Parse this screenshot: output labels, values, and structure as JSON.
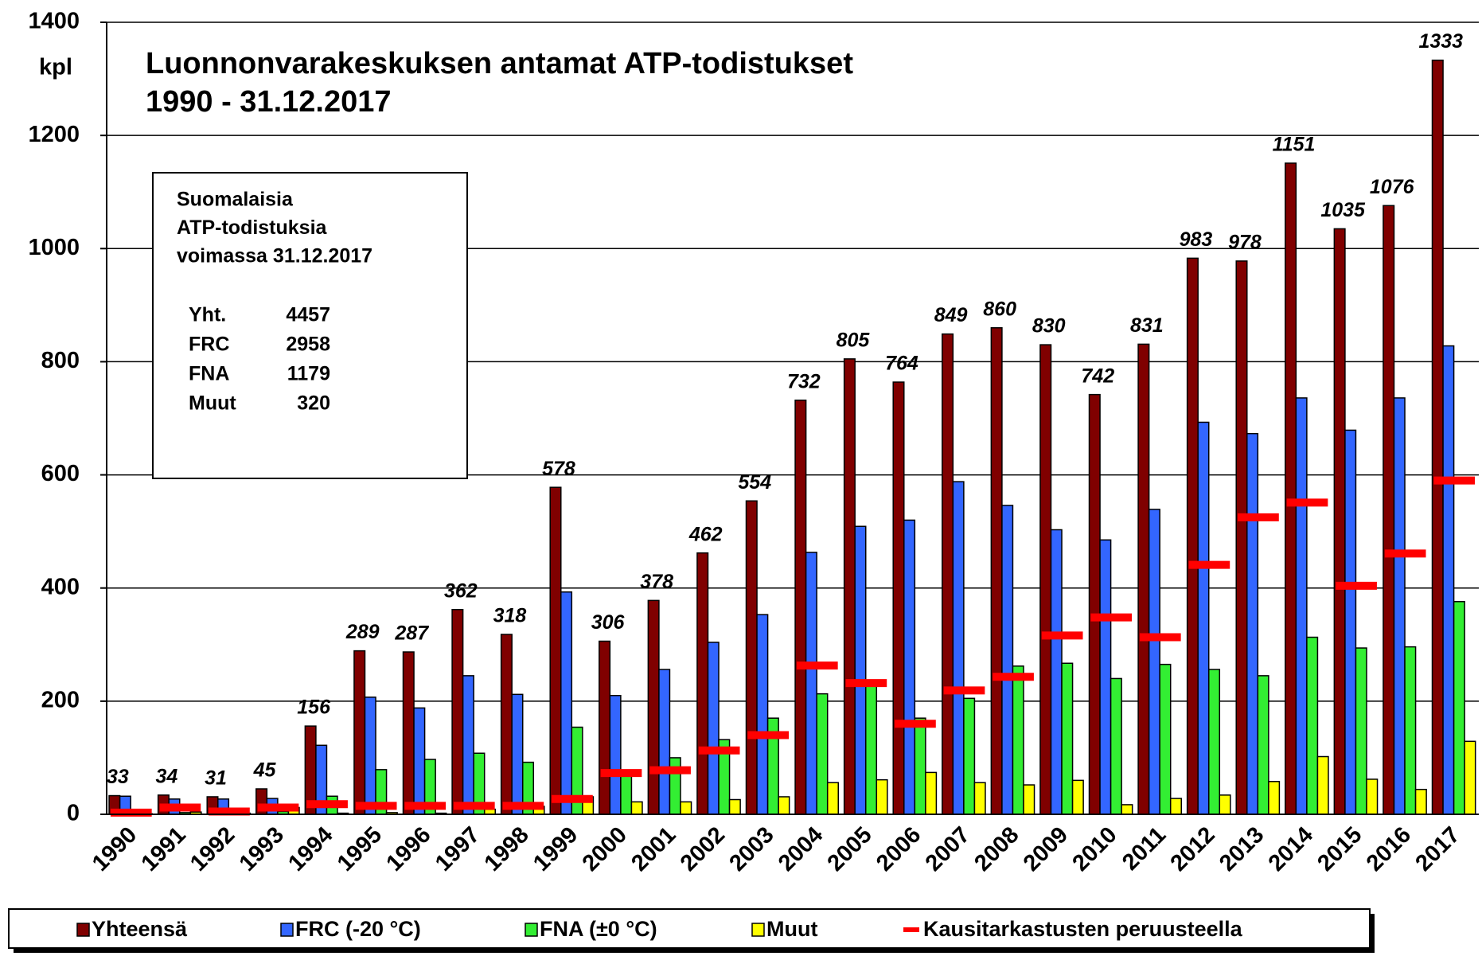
{
  "chart_data": {
    "type": "bar",
    "title": "Luonnonvarakeskuksen antamat ATP-todistukset",
    "subtitle": "1990 - 31.12.2017",
    "y_label": "kpl",
    "categories": [
      "1990",
      "1991",
      "1992",
      "1993",
      "1994",
      "1995",
      "1996",
      "1997",
      "1998",
      "1999",
      "2000",
      "2001",
      "2002",
      "2003",
      "2004",
      "2005",
      "2006",
      "2007",
      "2008",
      "2009",
      "2010",
      "2011",
      "2012",
      "2013",
      "2014",
      "2015",
      "2016",
      "2017"
    ],
    "series": [
      {
        "name": "Yhteensä",
        "color": "#800000",
        "marker": "bar",
        "values": [
          33,
          34,
          31,
          45,
          156,
          289,
          287,
          362,
          318,
          578,
          306,
          378,
          462,
          554,
          732,
          805,
          764,
          849,
          860,
          830,
          742,
          831,
          983,
          978,
          1151,
          1035,
          1076,
          1333
        ]
      },
      {
        "name": "FRC (-20 °C)",
        "color": "#3366ff",
        "marker": "bar",
        "values": [
          32,
          27,
          27,
          28,
          122,
          207,
          188,
          245,
          212,
          393,
          210,
          256,
          304,
          353,
          463,
          509,
          520,
          588,
          546,
          503,
          485,
          539,
          693,
          673,
          736,
          679,
          736,
          828
        ]
      },
      {
        "name": "FNA (±0 °C)",
        "color": "#33ee33",
        "marker": "bar",
        "values": [
          0,
          3,
          2,
          5,
          32,
          79,
          97,
          108,
          92,
          154,
          70,
          100,
          132,
          170,
          213,
          235,
          170,
          205,
          262,
          267,
          240,
          265,
          256,
          245,
          313,
          294,
          296,
          376
        ]
      },
      {
        "name": "Muut",
        "color": "#ffff00",
        "marker": "bar",
        "values": [
          1,
          4,
          2,
          12,
          2,
          3,
          2,
          9,
          14,
          31,
          22,
          22,
          26,
          31,
          56,
          61,
          74,
          56,
          52,
          60,
          17,
          28,
          34,
          58,
          102,
          62,
          44,
          129
        ]
      },
      {
        "name": "Kausitarkastusten peruusteella",
        "color": "#ff0000",
        "marker": "dash",
        "values": [
          3,
          12,
          5,
          12,
          18,
          15,
          15,
          15,
          15,
          27,
          73,
          78,
          113,
          140,
          263,
          232,
          160,
          219,
          243,
          316,
          348,
          313,
          441,
          525,
          551,
          404,
          461,
          590
        ]
      }
    ],
    "labeled_series": 0,
    "ylim": [
      0,
      1400
    ],
    "yticks": [
      0,
      200,
      400,
      600,
      800,
      1000,
      1200,
      1400
    ],
    "grid": true,
    "legend": "bottom",
    "info_box": {
      "lines": [
        "Suomalaisia",
        "ATP-todistuksia",
        "voimassa  31.12.2017"
      ],
      "rows": [
        [
          "Yht.",
          "4457"
        ],
        [
          "FRC",
          "2958"
        ],
        [
          "FNA",
          "1179"
        ],
        [
          "Muut",
          "320"
        ]
      ]
    }
  }
}
